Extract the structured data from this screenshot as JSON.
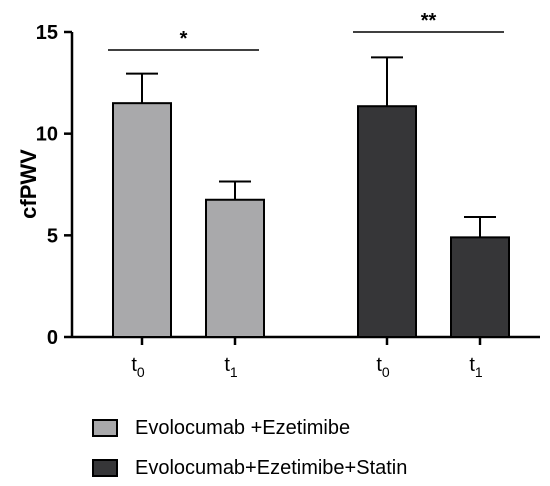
{
  "chart_data": {
    "type": "bar",
    "ylabel": "cfPWV",
    "ylim": [
      0,
      15
    ],
    "yticks": [
      0,
      5,
      10,
      15
    ],
    "categories": [
      {
        "base": "t",
        "sub": "0"
      },
      {
        "base": "t",
        "sub": "1"
      },
      {
        "base": "t",
        "sub": "0"
      },
      {
        "base": "t",
        "sub": "1"
      }
    ],
    "groups": [
      {
        "name": "Evolocumab +Ezetimibe",
        "color": "#a9a9ab",
        "values": [
          11.5,
          6.75
        ],
        "errors": [
          1.45,
          0.9
        ],
        "significance": "*"
      },
      {
        "name": "Evolocumab+Ezetimibe+Statin",
        "color": "#363638",
        "values": [
          11.35,
          4.9
        ],
        "errors": [
          2.4,
          1.0
        ],
        "significance": "**"
      }
    ],
    "grid": false,
    "legend_position": "bottom"
  }
}
